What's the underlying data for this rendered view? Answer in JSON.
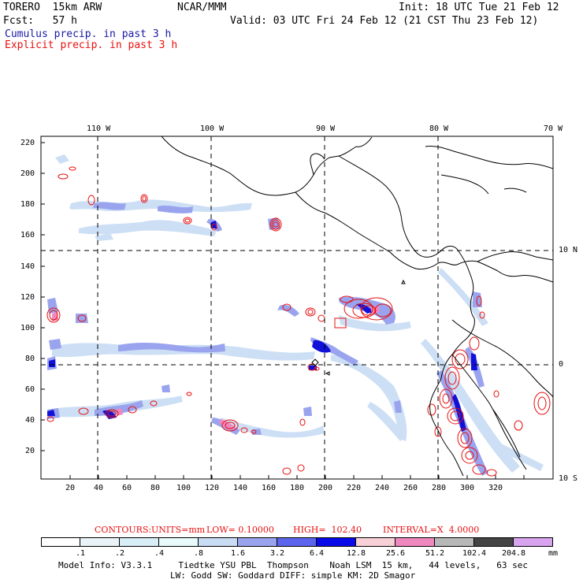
{
  "header": {
    "model": "TORERO  15km ARW",
    "org": "NCAR/MMM",
    "init": "Init: 18 UTC Tue 21 Feb 12",
    "fcst": "Fcst:   57 h",
    "valid": "Valid: 03 UTC Fri 24 Feb 12 (21 CST Thu 23 Feb 12)",
    "line_cumulus": "Cumulus precip. in past 3 h",
    "line_explicit": "Explicit precip. in past 3 h"
  },
  "map": {
    "lon_labels": [
      "110 W",
      "100 W",
      "90 W",
      "80 W",
      "70 W"
    ],
    "lat_labels": [
      "10 N",
      "0",
      "10 S"
    ],
    "y_ticks": [
      "220",
      "200",
      "180",
      "160",
      "140",
      "120",
      "100",
      "80",
      "60",
      "40",
      "20"
    ],
    "x_ticks": [
      "20",
      "40",
      "60",
      "80",
      "100",
      "120",
      "140",
      "160",
      "180",
      "200",
      "220",
      "240",
      "260",
      "280",
      "300",
      "320"
    ]
  },
  "contours": {
    "label": "CONTOURS:",
    "units": "UNITS=mm",
    "low": "LOW= 0.10000",
    "high": "HIGH=  102.40",
    "interval": "INTERVAL=X  4.0000"
  },
  "legend": {
    "unit": "mm",
    "levels": [
      ".1",
      ".2",
      ".4",
      ".8",
      "1.6",
      "3.2",
      "6.4",
      "12.8",
      "25.6",
      "51.2",
      "102.4",
      "204.8"
    ],
    "colors": [
      "#ffffff",
      "#eaf4f8",
      "#d8eef6",
      "#e8fafa",
      "#c8dcf4",
      "#9aa4ee",
      "#5c64ee",
      "#0a0ae8",
      "#f8d0d8",
      "#f088c0",
      "#b8b8b8",
      "#444444",
      "#d8a4f0"
    ]
  },
  "footer": {
    "line1": "Model Info: V3.3.1     Tiedtke YSU PBL  Thompson    Noah LSM  15 km,   44 levels,   63 sec",
    "line2": "LW: Godd SW: Goddard DIFF: simple KM: 2D Smagor"
  }
}
